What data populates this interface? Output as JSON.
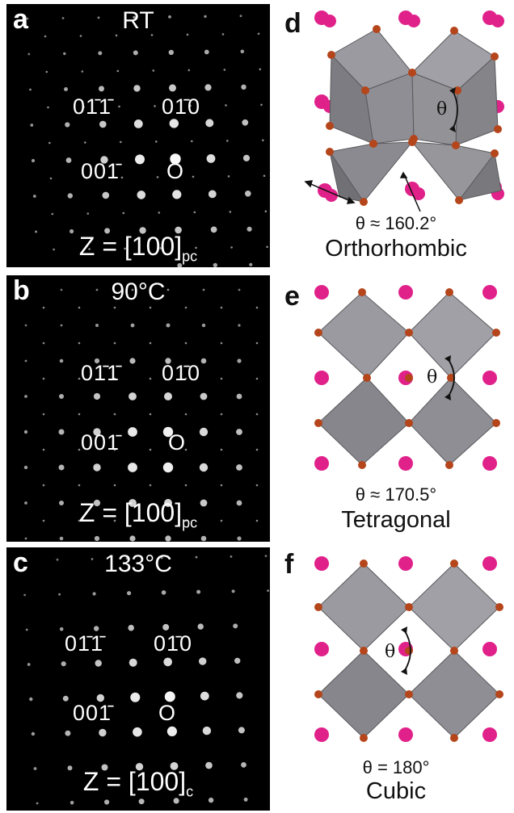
{
  "panels": {
    "a": {
      "label": "a",
      "title": "RT",
      "m011": "01̄1̄",
      "m010": "01̄0",
      "m001": "001̄",
      "origin": "O",
      "zone_main": "Z = [100]",
      "zone_sub": "pc"
    },
    "b": {
      "label": "b",
      "title": "90°C",
      "m011": "01̄1̄",
      "m010": "01̄0",
      "m001": "001̄",
      "origin": "O",
      "zone_main": "Z = [100]",
      "zone_sub": "pc"
    },
    "c": {
      "label": "c",
      "title": "133°C",
      "m011": "01̄1̄",
      "m010": "01̄0",
      "m001": "001̄",
      "origin": "O",
      "zone_main": "Z = [100]",
      "zone_sub": "c"
    }
  },
  "structures": {
    "d": {
      "label": "d",
      "angle_symbol": "θ",
      "angle_text": "θ ≈ 160.2°",
      "phase": "Orthorhombic"
    },
    "e": {
      "label": "e",
      "angle_symbol": "θ",
      "angle_text": "θ ≈ 170.5°",
      "phase": "Tetragonal"
    },
    "f": {
      "label": "f",
      "angle_symbol": "θ",
      "angle_text": "θ = 180°",
      "phase": "Cubic"
    }
  },
  "colors": {
    "background": "#000000",
    "octahedron": "#8a8a8e",
    "oxygen": "#b5451b",
    "a_cation": "#e0218a"
  }
}
